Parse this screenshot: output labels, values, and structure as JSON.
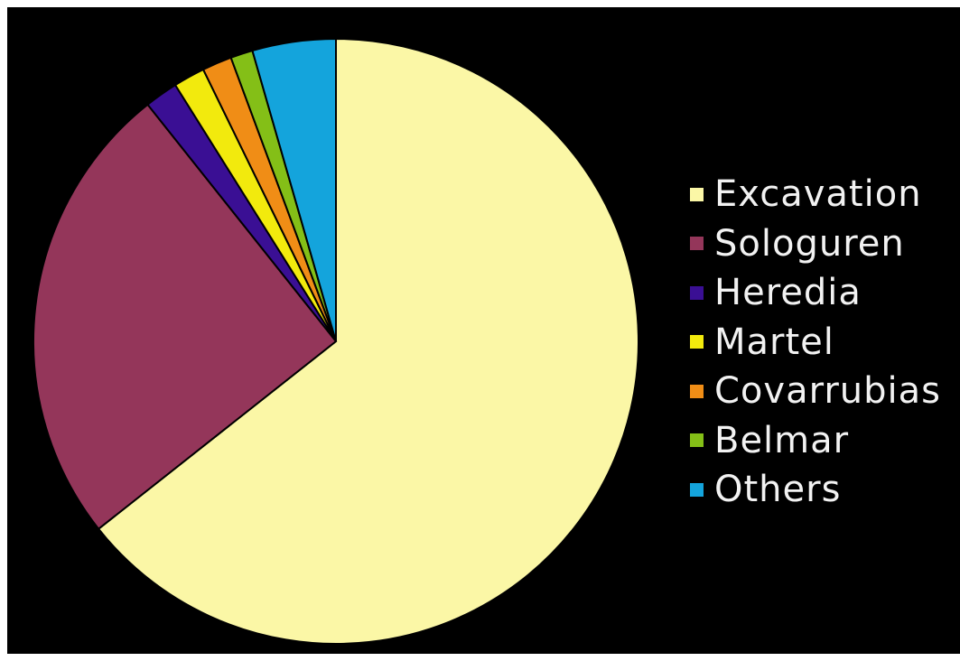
{
  "chart_data": {
    "type": "pie",
    "title": "",
    "start_angle_deg": 0,
    "direction": "clockwise",
    "slice_border_color": "#000000",
    "legend_position": "right",
    "slices": [
      {
        "label": "Excavation",
        "value": 65.0,
        "color": "#fbf7a6"
      },
      {
        "label": "Sologuren",
        "value": 25.2,
        "color": "#94365a"
      },
      {
        "label": "Heredia",
        "value": 1.8,
        "color": "#3a0f94"
      },
      {
        "label": "Martel",
        "value": 1.7,
        "color": "#f2ea0d"
      },
      {
        "label": "Covarrubias",
        "value": 1.6,
        "color": "#f08d16"
      },
      {
        "label": "Belmar",
        "value": 1.2,
        "color": "#84bf17"
      },
      {
        "label": "Others",
        "value": 4.5,
        "color": "#14a4dc"
      }
    ]
  }
}
